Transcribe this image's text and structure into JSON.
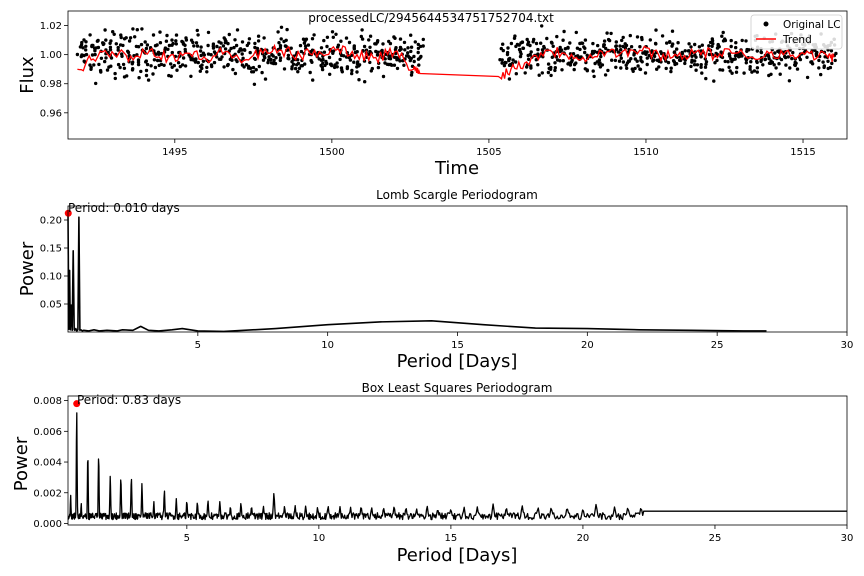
{
  "chart_data": [
    {
      "type": "scatter",
      "title": "processedLC/2945644534751752704.txt",
      "xlabel": "Time",
      "ylabel": "Flux",
      "xlim": [
        1491.6,
        1516.4
      ],
      "ylim": [
        0.942,
        1.03
      ],
      "xticks": [
        1495,
        1500,
        1505,
        1510,
        1515
      ],
      "yticks": [
        0.96,
        0.98,
        1.0,
        1.02
      ],
      "ytick_labels": [
        "0.96",
        "0.98",
        "1.00",
        "1.02"
      ],
      "legend": {
        "position": "top-right",
        "entries": [
          "Original LC",
          "Trend"
        ]
      },
      "series": [
        {
          "name": "Original LC",
          "style": "black dots",
          "segments": [
            [
              1491.9,
              1502.8
            ],
            [
              1505.3,
              1516.0
            ]
          ],
          "center": 1.0,
          "spread": 0.01
        },
        {
          "name": "Trend",
          "style": "red line",
          "x": [
            1491.9,
            1492.4,
            1493.0,
            1493.6,
            1494.2,
            1494.8,
            1495.4,
            1496.0,
            1496.6,
            1497.2,
            1497.8,
            1498.4,
            1499.0,
            1499.6,
            1500.2,
            1500.8,
            1501.4,
            1502.0,
            1502.6,
            1502.8,
            1505.3,
            1505.7,
            1506.2,
            1506.8,
            1507.4,
            1508.0,
            1508.6,
            1509.2,
            1509.8,
            1510.4,
            1511.0,
            1511.6,
            1512.2,
            1512.8,
            1513.4,
            1514.0,
            1514.6,
            1515.2,
            1515.8,
            1516.0
          ],
          "y": [
            0.99,
            0.997,
            1.002,
            0.999,
            1.003,
            0.998,
            1.001,
            0.997,
            1.002,
            0.996,
            1.001,
            1.003,
            0.999,
            1.002,
            1.004,
            1.0,
            0.998,
            1.002,
            0.99,
            0.987,
            0.985,
            0.99,
            0.995,
            1.003,
            1.001,
            0.998,
            1.002,
            1.001,
            1.003,
            1.0,
            0.999,
            1.002,
            1.0,
            1.001,
            0.998,
            1.002,
            0.999,
            1.001,
            0.998,
            0.999
          ]
        }
      ]
    },
    {
      "type": "line",
      "title": "Lomb Scargle Periodogram",
      "xlabel": "Period [Days]",
      "ylabel": "Power",
      "xlim": [
        0,
        30
      ],
      "ylim": [
        0,
        0.225
      ],
      "xticks": [
        5,
        10,
        15,
        20,
        25,
        30
      ],
      "yticks": [
        0.05,
        0.1,
        0.15,
        0.2
      ],
      "ytick_labels": [
        "0.05",
        "0.10",
        "0.15",
        "0.20"
      ],
      "annotation": "Period: 0.010 days",
      "peak": {
        "x": 0.01,
        "y": 0.212
      },
      "x": [
        0.0,
        0.03,
        0.06,
        0.09,
        0.12,
        0.16,
        0.2,
        0.24,
        0.26,
        0.3,
        0.34,
        0.38,
        0.42,
        0.46,
        0.5,
        0.55,
        0.6,
        0.8,
        1.0,
        1.2,
        1.5,
        1.9,
        2.1,
        2.5,
        2.8,
        3.1,
        3.5,
        4.0,
        4.4,
        5.0,
        6.0,
        8.0,
        10.0,
        12.0,
        14.0,
        16.0,
        18.0,
        20.0,
        22.0,
        24.0,
        26.0,
        26.9
      ],
      "y": [
        0.212,
        0.005,
        0.11,
        0.004,
        0.048,
        0.003,
        0.145,
        0.004,
        0.003,
        0.006,
        0.002,
        0.004,
        0.205,
        0.003,
        0.004,
        0.002,
        0.003,
        0.002,
        0.004,
        0.002,
        0.003,
        0.002,
        0.004,
        0.003,
        0.01,
        0.003,
        0.002,
        0.004,
        0.006,
        0.002,
        0.001,
        0.006,
        0.013,
        0.018,
        0.02,
        0.013,
        0.007,
        0.006,
        0.004,
        0.003,
        0.002,
        0.002
      ]
    },
    {
      "type": "line",
      "title": "Box Least Squares Periodogram",
      "xlabel": "Period [Days]",
      "ylabel": "Power",
      "xlim": [
        0.5,
        30
      ],
      "ylim": [
        -0.0001,
        0.0083
      ],
      "xticks": [
        5,
        10,
        15,
        20,
        25,
        30
      ],
      "yticks": [
        0.0,
        0.002,
        0.004,
        0.006,
        0.008
      ],
      "ytick_labels": [
        "0.000",
        "0.002",
        "0.004",
        "0.006",
        "0.008"
      ],
      "annotation": "Period: 0.83 days",
      "peak": {
        "x": 0.83,
        "y": 0.0078
      },
      "peaks": [
        [
          0.6,
          0.0019
        ],
        [
          0.83,
          0.0078
        ],
        [
          1.25,
          0.005
        ],
        [
          1.66,
          0.0049
        ],
        [
          1.0,
          0.0014
        ],
        [
          2.1,
          0.0034
        ],
        [
          2.5,
          0.0033
        ],
        [
          2.9,
          0.0033
        ],
        [
          3.3,
          0.0027
        ],
        [
          3.75,
          0.0015
        ],
        [
          4.15,
          0.0023
        ],
        [
          4.6,
          0.0017
        ],
        [
          5.0,
          0.0016
        ],
        [
          5.4,
          0.0015
        ],
        [
          5.8,
          0.0016
        ],
        [
          6.25,
          0.0015
        ],
        [
          6.65,
          0.0012
        ],
        [
          7.05,
          0.0014
        ],
        [
          7.45,
          0.0012
        ],
        [
          7.9,
          0.0012
        ],
        [
          8.3,
          0.0021
        ],
        [
          8.7,
          0.0012
        ],
        [
          9.1,
          0.0012
        ],
        [
          9.5,
          0.0012
        ],
        [
          9.95,
          0.0011
        ],
        [
          10.35,
          0.0012
        ],
        [
          10.8,
          0.0011
        ],
        [
          11.2,
          0.0011
        ],
        [
          11.6,
          0.0012
        ],
        [
          12.0,
          0.0011
        ],
        [
          12.45,
          0.0011
        ],
        [
          12.85,
          0.0012
        ],
        [
          13.3,
          0.0011
        ],
        [
          13.7,
          0.001
        ],
        [
          14.1,
          0.0012
        ],
        [
          14.5,
          0.001
        ],
        [
          15.0,
          0.001
        ],
        [
          15.5,
          0.0011
        ],
        [
          16.0,
          0.0011
        ],
        [
          16.6,
          0.0013
        ],
        [
          17.1,
          0.0011
        ],
        [
          17.7,
          0.0012
        ],
        [
          18.3,
          0.0011
        ],
        [
          18.8,
          0.0011
        ],
        [
          19.4,
          0.0011
        ],
        [
          20.0,
          0.001
        ],
        [
          20.5,
          0.0013
        ],
        [
          21.2,
          0.0011
        ],
        [
          21.7,
          0.0011
        ],
        [
          22.2,
          0.0011
        ]
      ],
      "baseline": 0.0005,
      "plateau": {
        "from": 22.3,
        "to": 30,
        "value": 0.0008
      }
    }
  ]
}
